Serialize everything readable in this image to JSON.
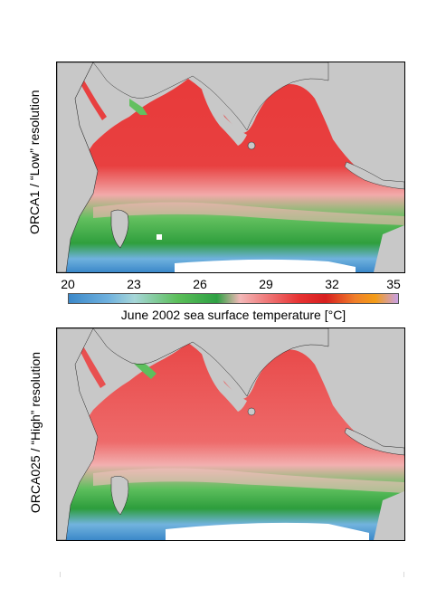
{
  "panels": [
    {
      "id": "top",
      "label": "ORCA1 / “Low” resolution"
    },
    {
      "id": "bottom",
      "label": "ORCA025 / “High” resolution"
    }
  ],
  "colorbar": {
    "ticks": [
      "20",
      "23",
      "26",
      "29",
      "32",
      "35"
    ],
    "title": "June 2002 sea surface temperature [°C]",
    "min": 20,
    "max": 35,
    "colors": {
      "cold": "#3b88c9",
      "cool": "#5cbf5a",
      "mild": "#f3b8b8",
      "warm": "#e73232",
      "hot": "#f39c16",
      "max": "#c8a0e6",
      "land": "#c8c8c8"
    }
  }
}
